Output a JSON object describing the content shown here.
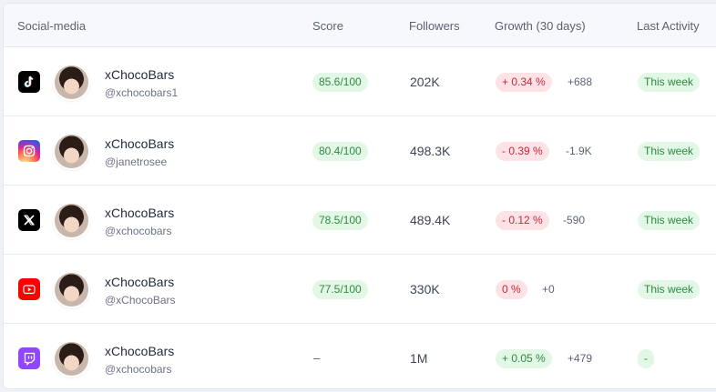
{
  "header": {
    "col_social": "Social-media",
    "col_score": "Score",
    "col_followers": "Followers",
    "col_growth": "Growth (30 days)",
    "col_activity": "Last Activity"
  },
  "rows": [
    {
      "platform": "tiktok-icon",
      "platform_color": "#000000",
      "name": "xChocoBars",
      "handle": "@xchocobars1",
      "score": "85.6/100",
      "followers": "202K",
      "growth_pct": "+ 0.34 %",
      "growth_status": "negative-style",
      "growth_abs": "+688",
      "activity": "This week"
    },
    {
      "platform": "instagram-icon",
      "platform_color": "#e1306c",
      "name": "xChocoBars",
      "handle": "@janetrosee",
      "score": "80.4/100",
      "followers": "498.3K",
      "growth_pct": "- 0.39 %",
      "growth_status": "negative-style",
      "growth_abs": "-1.9K",
      "activity": "This week"
    },
    {
      "platform": "x-icon",
      "platform_color": "#000000",
      "name": "xChocoBars",
      "handle": "@xchocobars",
      "score": "78.5/100",
      "followers": "489.4K",
      "growth_pct": "- 0.12 %",
      "growth_status": "negative-style",
      "growth_abs": "-590",
      "activity": "This week"
    },
    {
      "platform": "youtube-icon",
      "platform_color": "#ff0000",
      "name": "xChocoBars",
      "handle": "@xChocoBars",
      "score": "77.5/100",
      "followers": "330K",
      "growth_pct": "0 %",
      "growth_status": "negative-style",
      "growth_abs": "+0",
      "activity": "This week"
    },
    {
      "platform": "twitch-icon",
      "platform_color": "#9146ff",
      "name": "xChocoBars",
      "handle": "@xchocobars",
      "score": "–",
      "followers": "1M",
      "growth_pct": "+ 0.05 %",
      "growth_status": "positive-style",
      "growth_abs": "+479",
      "activity": "-"
    }
  ]
}
